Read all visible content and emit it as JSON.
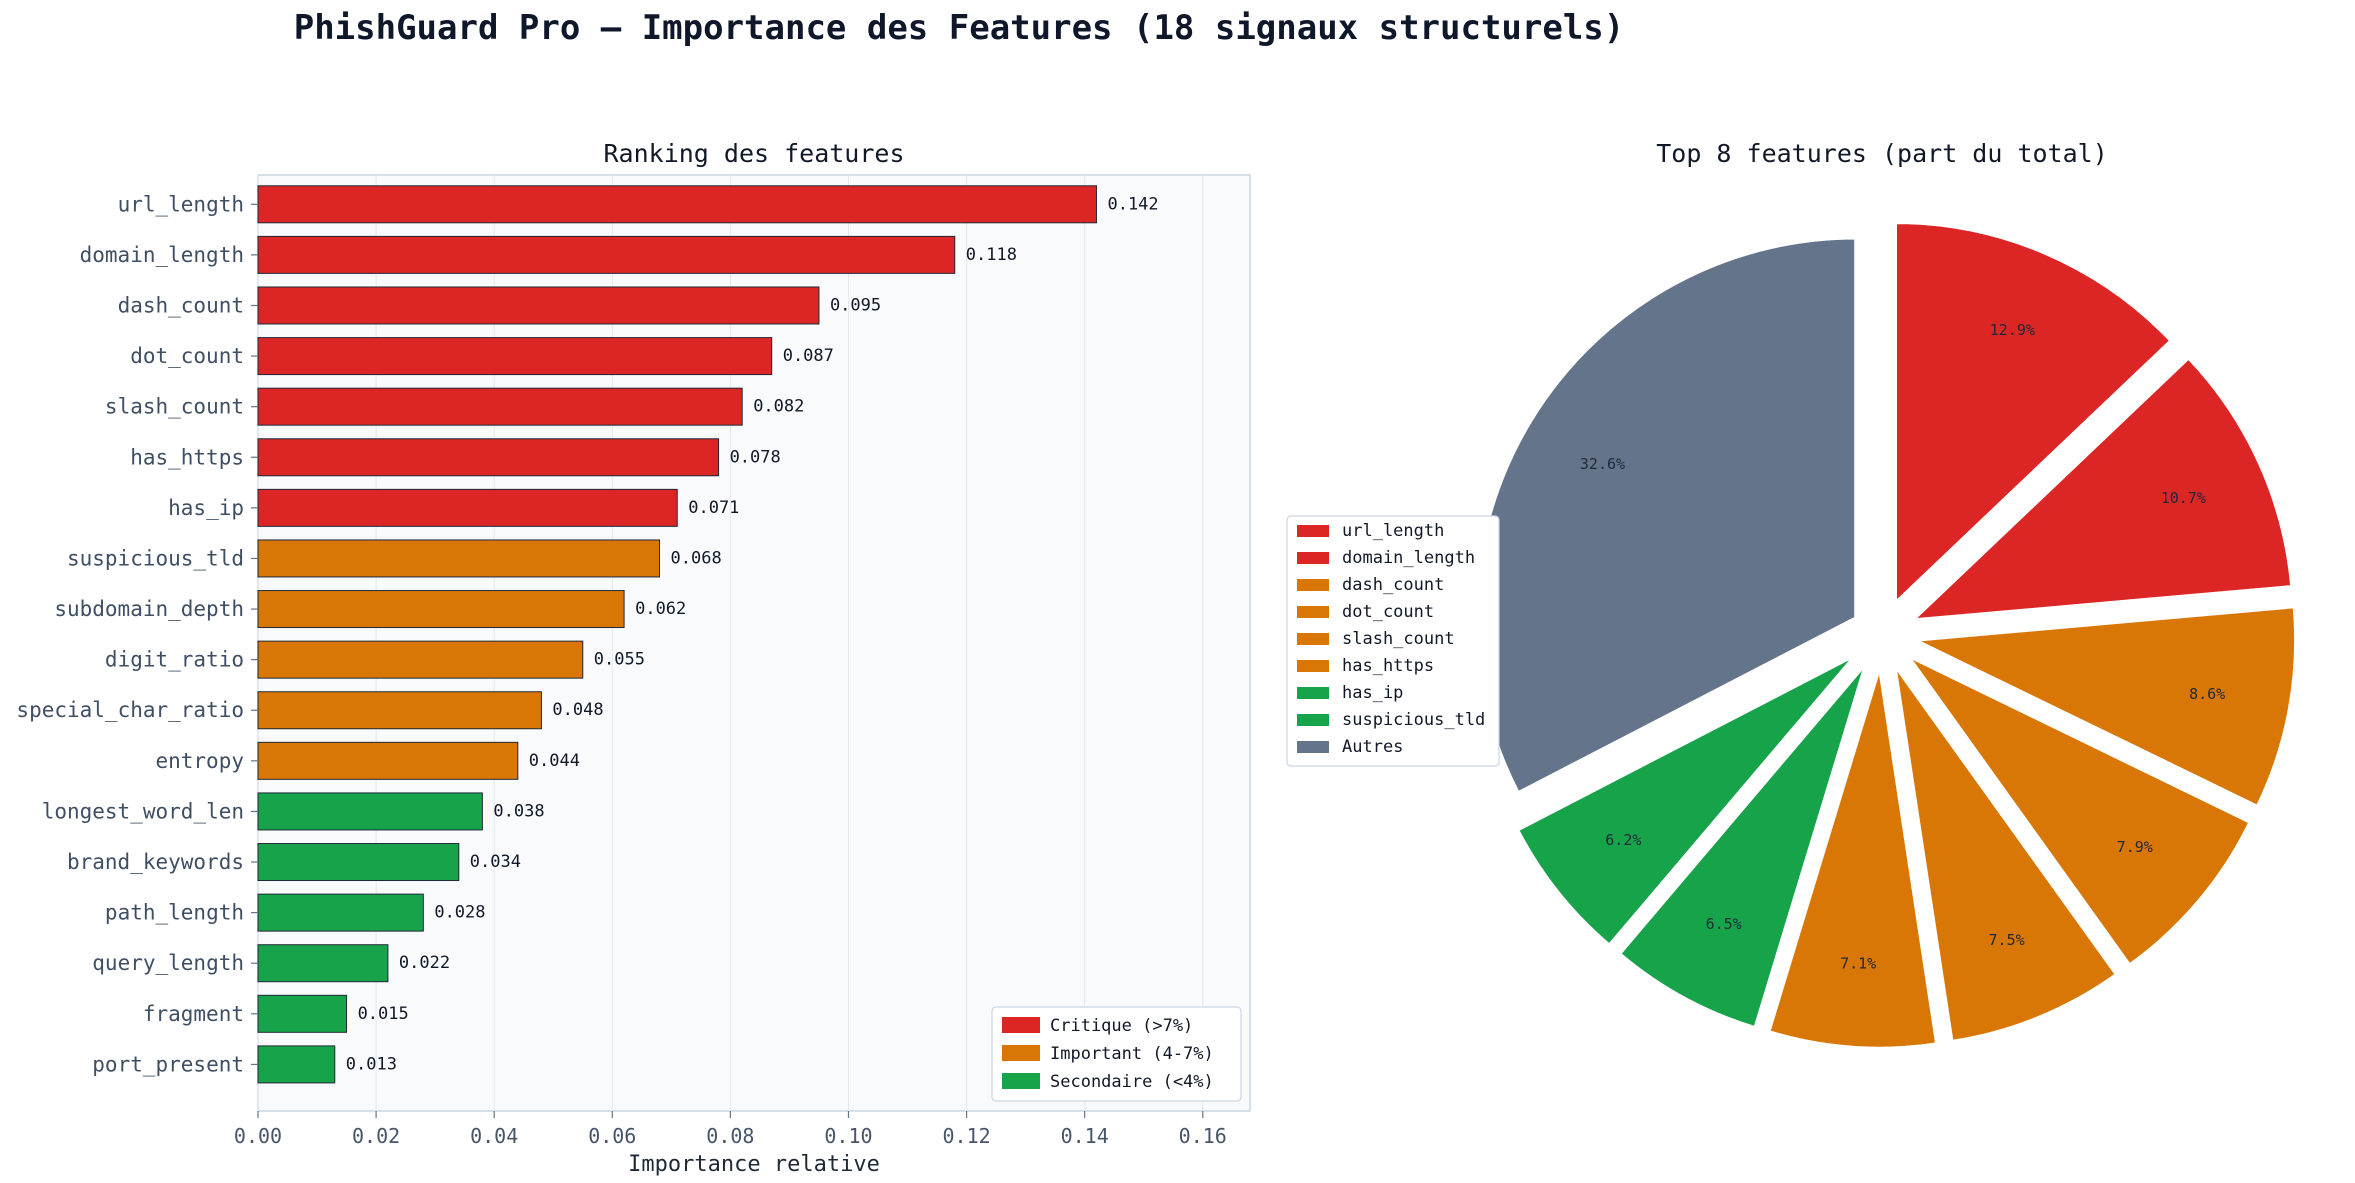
{
  "title": "PhishGuard Pro — Importance des Features (18 signaux structurels)",
  "chart_data": [
    {
      "type": "bar",
      "orientation": "horizontal",
      "title": "Ranking des features",
      "xlabel": "Importance relative",
      "ylabel": "",
      "xlim": [
        0,
        0.168
      ],
      "xticks": [
        "0.00",
        "0.02",
        "0.04",
        "0.06",
        "0.08",
        "0.10",
        "0.12",
        "0.14",
        "0.16"
      ],
      "grid": "vertical",
      "legend_position": "bottom-right",
      "categories": [
        "url_length",
        "domain_length",
        "dash_count",
        "dot_count",
        "slash_count",
        "has_https",
        "has_ip",
        "suspicious_tld",
        "subdomain_depth",
        "digit_ratio",
        "special_char_ratio",
        "entropy",
        "longest_word_len",
        "brand_keywords",
        "path_length",
        "query_length",
        "fragment",
        "port_present"
      ],
      "values": [
        0.142,
        0.118,
        0.095,
        0.087,
        0.082,
        0.078,
        0.071,
        0.068,
        0.062,
        0.055,
        0.048,
        0.044,
        0.038,
        0.034,
        0.028,
        0.022,
        0.015,
        0.013
      ],
      "value_labels": [
        "0.142",
        "0.118",
        "0.095",
        "0.087",
        "0.082",
        "0.078",
        "0.071",
        "0.068",
        "0.062",
        "0.055",
        "0.048",
        "0.044",
        "0.038",
        "0.034",
        "0.028",
        "0.022",
        "0.015",
        "0.013"
      ],
      "groups": [
        "critique",
        "critique",
        "critique",
        "critique",
        "critique",
        "critique",
        "critique",
        "important",
        "important",
        "important",
        "important",
        "important",
        "secondaire",
        "secondaire",
        "secondaire",
        "secondaire",
        "secondaire",
        "secondaire"
      ],
      "legend": [
        {
          "key": "critique",
          "label": "Critique (>7%)",
          "color": "#dc2626"
        },
        {
          "key": "important",
          "label": "Important (4-7%)",
          "color": "#d97706"
        },
        {
          "key": "secondaire",
          "label": "Secondaire (<4%)",
          "color": "#16a34a"
        }
      ]
    },
    {
      "type": "pie",
      "title": "Top 8 features (part du total)",
      "labels": [
        "url_length",
        "domain_length",
        "dash_count",
        "dot_count",
        "slash_count",
        "has_https",
        "has_ip",
        "suspicious_tld",
        "Autres"
      ],
      "values": [
        12.9,
        10.7,
        8.6,
        7.9,
        7.5,
        7.1,
        6.5,
        6.2,
        32.6
      ],
      "pct_labels": [
        "12.9%",
        "10.7%",
        "8.6%",
        "7.9%",
        "7.5%",
        "7.1%",
        "6.5%",
        "6.2%",
        "32.6%"
      ],
      "colors": [
        "#dc2626",
        "#dc2626",
        "#d97706",
        "#d97706",
        "#d97706",
        "#d97706",
        "#16a34a",
        "#16a34a",
        "#64748b"
      ],
      "legend_labels": [
        "url_length",
        "domain_length",
        "dash_count",
        "dot_count",
        "slash_count",
        "has_https",
        "has_ip",
        "suspicious_tld",
        "Autres"
      ],
      "legend_colors": [
        "#dc2626",
        "#dc2626",
        "#d97706",
        "#d97706",
        "#d97706",
        "#d97706",
        "#16a34a",
        "#16a34a",
        "#64748b"
      ],
      "legend_position": "left"
    }
  ]
}
